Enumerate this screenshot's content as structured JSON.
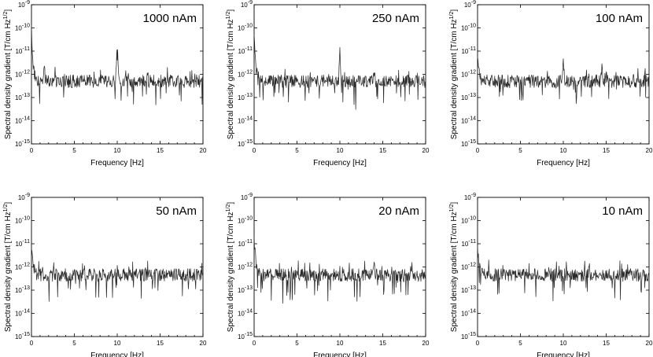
{
  "chart_data": {
    "type": "line",
    "layout": "2x3 grid of panels",
    "shared": {
      "xlabel": "Frequency [Hz]",
      "ylabel": "Spectral density gradient [T/cm Hz^1/2]",
      "ylabel_main": "Spectral density gradient [T/cm Hz",
      "ylabel_sup": "1/2",
      "ylabel_close": "]",
      "xlim": [
        0,
        20
      ],
      "ylim": [
        1e-15,
        1e-09
      ],
      "yscale": "log",
      "grid": false,
      "x_ticks": [
        "0",
        "5",
        "10",
        "15",
        "20"
      ],
      "y_tick_base": "10",
      "y_tick_exponents": [
        "-9",
        "-10",
        "-11",
        "-12",
        "-13",
        "-14",
        "-15"
      ],
      "y_tick_values": [
        1e-09,
        1e-10,
        1e-11,
        1e-12,
        1e-13,
        1e-14,
        1e-15
      ]
    },
    "panels": [
      {
        "title": "1000 nAm",
        "noise_level": 5e-13,
        "low_freq_peak": 1e-10,
        "peaks": [
          {
            "x": 10.0,
            "y": 4.5e-11
          },
          {
            "x": 13.5,
            "y": 1.5e-12
          },
          {
            "x": 1.5,
            "y": 2e-12
          }
        ]
      },
      {
        "title": "250 nAm",
        "noise_level": 5e-13,
        "low_freq_peak": 9e-11,
        "peaks": [
          {
            "x": 10.0,
            "y": 1.2e-11
          },
          {
            "x": 14.0,
            "y": 1.5e-12
          }
        ]
      },
      {
        "title": "100 nAm",
        "noise_level": 5e-13,
        "low_freq_peak": 6e-12,
        "peaks": [
          {
            "x": 10.0,
            "y": 4e-12
          },
          {
            "x": 14.5,
            "y": 1.8e-12
          },
          {
            "x": 19.5,
            "y": 1.5e-12
          }
        ]
      },
      {
        "title": "50 nAm",
        "noise_level": 4.5e-13,
        "low_freq_peak": 1.8e-11,
        "peaks": [
          {
            "x": 10.0,
            "y": 2e-12
          }
        ]
      },
      {
        "title": "20 nAm",
        "noise_level": 4.5e-13,
        "low_freq_peak": 3e-11,
        "peaks": [
          {
            "x": 14.0,
            "y": 1.5e-12
          }
        ]
      },
      {
        "title": "10 nAm",
        "noise_level": 4.5e-13,
        "low_freq_peak": 8e-12,
        "peaks": [
          {
            "x": 13.0,
            "y": 1.5e-12
          }
        ]
      }
    ]
  }
}
